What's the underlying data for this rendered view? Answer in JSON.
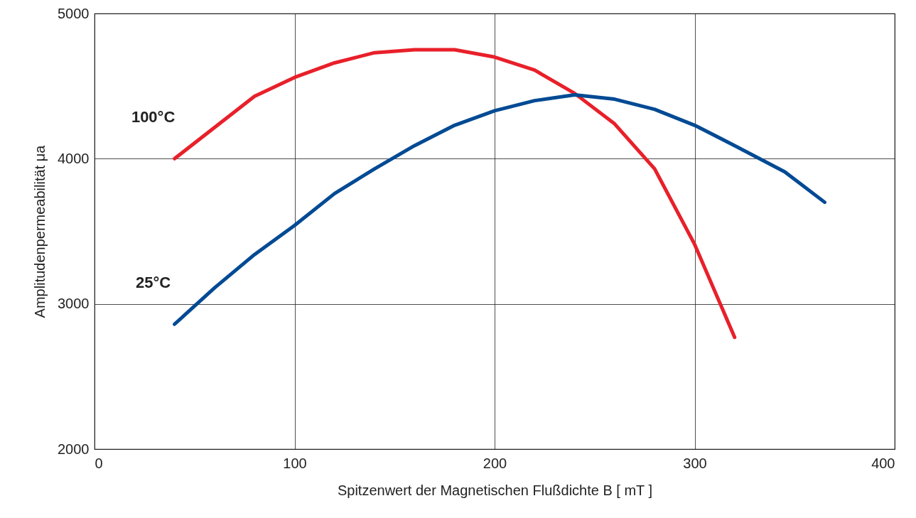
{
  "chart_data": {
    "type": "line",
    "xlabel": "Spitzenwert der Magnetischen Flußdichte B  [ mT ]",
    "ylabel": "Amplitudenpermeabilität  μa",
    "xlim": [
      0,
      400
    ],
    "xticks": [
      0,
      100,
      200,
      300,
      400
    ],
    "ylim": [
      2000,
      5000
    ],
    "yticks": [
      2000,
      3000,
      4000,
      5000
    ],
    "grid": true,
    "legend": false,
    "line_style": "solid",
    "marker": "none",
    "series": [
      {
        "name": "100°C",
        "color": "#e8202a",
        "x": [
          40,
          80,
          100,
          120,
          140,
          160,
          180,
          200,
          220,
          240,
          260,
          280,
          300,
          320
        ],
        "values": [
          4000,
          4430,
          4560,
          4660,
          4730,
          4750,
          4750,
          4700,
          4610,
          4450,
          4240,
          3930,
          3410,
          2770
        ]
      },
      {
        "name": "25°C",
        "color": "#004a94",
        "x": [
          40,
          60,
          80,
          100,
          120,
          140,
          160,
          180,
          200,
          220,
          240,
          260,
          280,
          300,
          320,
          345,
          365
        ],
        "values": [
          2860,
          3110,
          3340,
          3540,
          3760,
          3930,
          4090,
          4230,
          4330,
          4400,
          4440,
          4410,
          4340,
          4230,
          4090,
          3910,
          3700
        ]
      }
    ]
  }
}
